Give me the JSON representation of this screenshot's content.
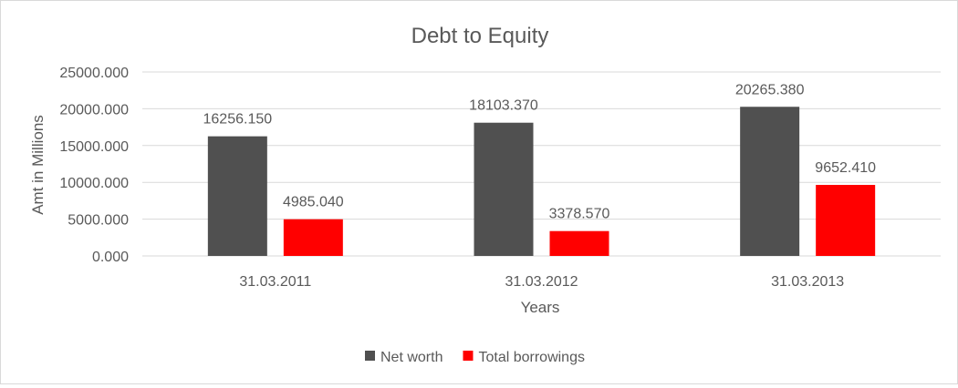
{
  "chart_data": {
    "type": "bar",
    "title": "Debt to Equity",
    "xlabel": "Years",
    "ylabel": "Amt in Millions",
    "categories": [
      "31.03.2011",
      "31.03.2012",
      "31.03.2013"
    ],
    "series": [
      {
        "name": "Net worth",
        "color": "#505050",
        "values": [
          16256.15,
          18103.37,
          20265.38
        ],
        "labels": [
          "16256.150",
          "18103.370",
          "20265.380"
        ]
      },
      {
        "name": "Total borrowings",
        "color": "#ff0000",
        "values": [
          4985.04,
          3378.57,
          9652.41
        ],
        "labels": [
          "4985.040",
          "3378.570",
          "9652.410"
        ]
      }
    ],
    "ylim": [
      0,
      25000
    ],
    "yticks": [
      "0.000",
      "5000.000",
      "10000.000",
      "15000.000",
      "20000.000",
      "25000.000"
    ],
    "grid": true,
    "legend": "bottom"
  }
}
